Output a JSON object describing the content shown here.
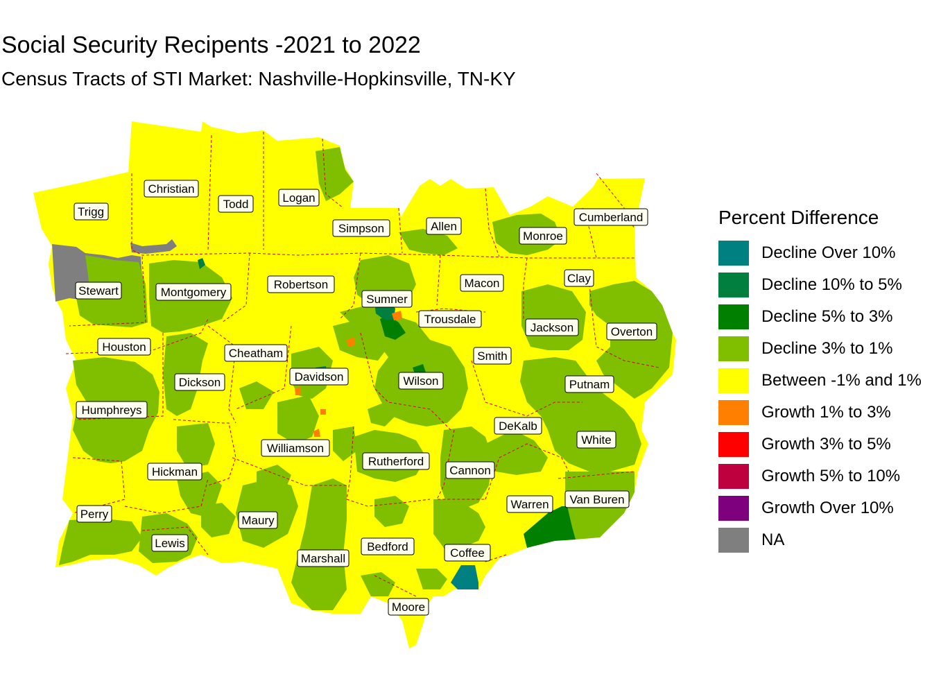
{
  "title": "Social Security Recipents -2021 to 2022",
  "subtitle": "Census Tracts of STI Market: Nashville-Hopkinsville, TN-KY",
  "legend": {
    "title": "Percent Difference",
    "items": [
      {
        "label": "Decline Over 10%",
        "color": "#008080"
      },
      {
        "label": "Decline 10% to 5%",
        "color": "#007f3f"
      },
      {
        "label": "Decline 5% to 3%",
        "color": "#007f00"
      },
      {
        "label": "Decline 3% to 1%",
        "color": "#7fbf00"
      },
      {
        "label": "Between -1% and 1%",
        "color": "#ffff00"
      },
      {
        "label": "Growth 1% to 3%",
        "color": "#ff7f00"
      },
      {
        "label": "Growth 3% to 5%",
        "color": "#ff0000"
      },
      {
        "label": "Growth 5% to 10%",
        "color": "#bf003f"
      },
      {
        "label": "Growth Over 10%",
        "color": "#7f007f"
      },
      {
        "label": "NA",
        "color": "#7f7f7f"
      }
    ]
  },
  "counties": {
    "trigg": "Trigg",
    "christian": "Christian",
    "todd": "Todd",
    "logan": "Logan",
    "simpson": "Simpson",
    "allen": "Allen",
    "monroe": "Monroe",
    "cumberland": "Cumberland",
    "stewart": "Stewart",
    "montgomery": "Montgomery",
    "robertson": "Robertson",
    "sumner": "Sumner",
    "macon": "Macon",
    "clay": "Clay",
    "trousdale": "Trousdale",
    "jackson": "Jackson",
    "overton": "Overton",
    "houston": "Houston",
    "cheatham": "Cheatham",
    "davidson": "Davidson",
    "wilson": "Wilson",
    "smith": "Smith",
    "putnam": "Putnam",
    "dickson": "Dickson",
    "humphreys": "Humphreys",
    "dekalb": "DeKalb",
    "white": "White",
    "williamson": "Williamson",
    "rutherford": "Rutherford",
    "cannon": "Cannon",
    "hickman": "Hickman",
    "warren": "Warren",
    "vanburen": "Van Buren",
    "perry": "Perry",
    "maury": "Maury",
    "lewis": "Lewis",
    "marshall": "Marshall",
    "bedford": "Bedford",
    "coffee": "Coffee",
    "moore": "Moore"
  },
  "colors": {
    "county_boundary": "#cc0000"
  }
}
